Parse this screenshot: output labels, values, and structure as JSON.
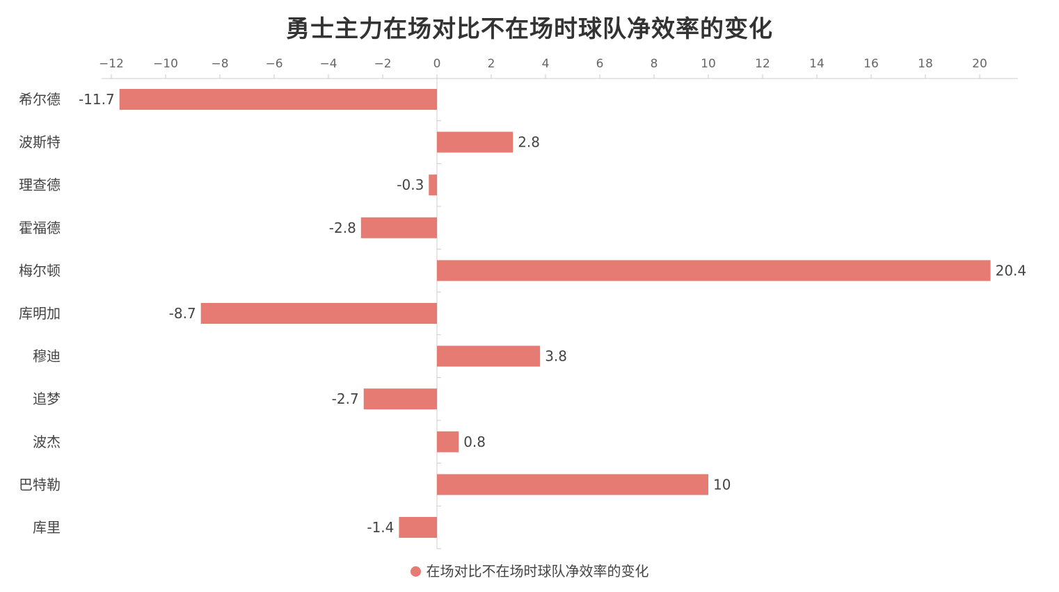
{
  "chart_data": {
    "type": "bar",
    "orientation": "horizontal",
    "title": "勇士主力在场对比不在场时球队净效率的变化",
    "categories": [
      "希尔德",
      "波斯特",
      "理查德",
      "霍福德",
      "梅尔顿",
      "库明加",
      "穆迪",
      "追梦",
      "波杰",
      "巴特勒",
      "库里"
    ],
    "series": [
      {
        "name": "在场对比不在场时球队净效率的变化",
        "values": [
          -11.7,
          2.8,
          -0.3,
          -2.8,
          20.4,
          -8.7,
          3.8,
          -2.7,
          0.8,
          10,
          -1.4
        ],
        "color": "#e57b73"
      }
    ],
    "x_ticks": [
      "−12",
      "−10",
      "−8",
      "−6",
      "−4",
      "−2",
      "0",
      "2",
      "4",
      "6",
      "8",
      "10",
      "12",
      "14",
      "16",
      "18",
      "20"
    ],
    "xlim": [
      -12,
      20
    ],
    "grid": false,
    "legend_position": "bottom-center"
  }
}
